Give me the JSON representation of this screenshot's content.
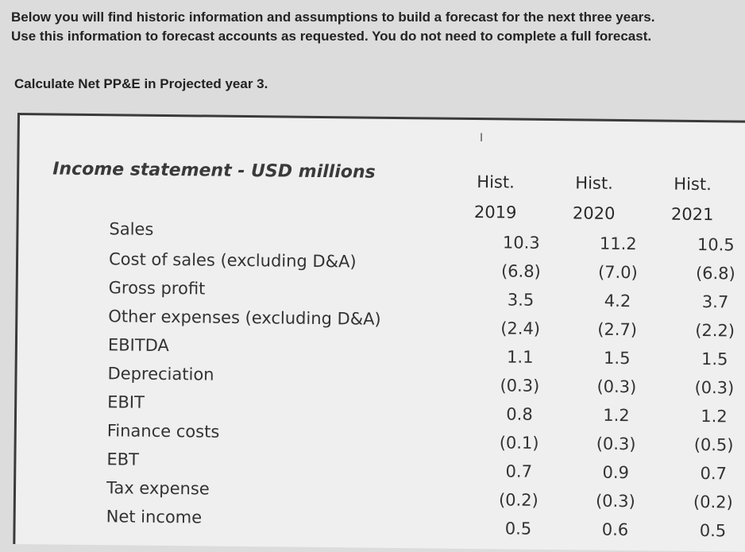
{
  "intro": {
    "line1": "Below you will find historic information and assumptions to build a forecast for the next three years.",
    "line2": "Use this information to forecast accounts as requested. You do not need to complete a full forecast."
  },
  "task": "Calculate Net PP&E in Projected year 3.",
  "table": {
    "title": "Income statement - USD millions",
    "columns": [
      {
        "label": "Hist.",
        "year": "2019"
      },
      {
        "label": "Hist.",
        "year": "2020"
      },
      {
        "label": "Hist.",
        "year": "2021"
      }
    ],
    "rows": [
      {
        "label": "Sales",
        "values": [
          "10.3",
          "11.2",
          "10.5"
        ]
      },
      {
        "label": "Cost of sales (excluding D&A)",
        "values": [
          "(6.8)",
          "(7.0)",
          "(6.8)"
        ]
      },
      {
        "label": "Gross profit",
        "values": [
          "3.5",
          "4.2",
          "3.7"
        ]
      },
      {
        "label": "Other expenses (excluding D&A)",
        "values": [
          "(2.4)",
          "(2.7)",
          "(2.2)"
        ]
      },
      {
        "label": "EBITDA",
        "values": [
          "1.1",
          "1.5",
          "1.5"
        ]
      },
      {
        "label": "Depreciation",
        "values": [
          "(0.3)",
          "(0.3)",
          "(0.3)"
        ]
      },
      {
        "label": "EBIT",
        "values": [
          "0.8",
          "1.2",
          "1.2"
        ]
      },
      {
        "label": "Finance costs",
        "values": [
          "(0.1)",
          "(0.3)",
          "(0.5)"
        ]
      },
      {
        "label": "EBT",
        "values": [
          "0.7",
          "0.9",
          "0.7"
        ]
      },
      {
        "label": "Tax expense",
        "values": [
          "(0.2)",
          "(0.3)",
          "(0.2)"
        ]
      },
      {
        "label": "Net income",
        "values": [
          "0.5",
          "0.6",
          "0.5"
        ]
      }
    ]
  },
  "icons": {
    "cursor": "text-cursor-icon"
  }
}
